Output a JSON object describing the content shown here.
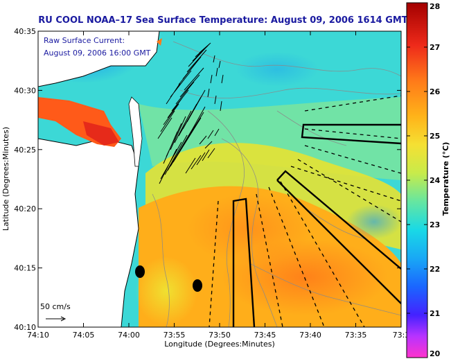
{
  "title": "RU COOL  NOAA–17  Sea Surface Temperature:  August 09, 2006 1614 GMT",
  "annotation": {
    "line1": "Raw Surface Current:",
    "line2": "August 09, 2006 16:00 GMT"
  },
  "scale_label": "50 cm/s",
  "x_axis": {
    "label": "Longitude (Degrees:Minutes)",
    "ticks": [
      "74:10",
      "74:05",
      "74:00",
      "73:55",
      "73:50",
      "73:45",
      "73:40",
      "73:35",
      "73:3"
    ]
  },
  "y_axis": {
    "label": "Latitude (Degrees:Minutes)",
    "ticks": [
      "40:35",
      "40:30",
      "40:25",
      "40:20",
      "40:15",
      "40:10"
    ]
  },
  "colorbar": {
    "label": "Temperature (°C)",
    "ticks": [
      "28",
      "27",
      "26",
      "25",
      "24",
      "23",
      "22",
      "21",
      "20"
    ],
    "range": [
      20,
      28
    ],
    "colors": [
      "#ff33cc",
      "#9933ff",
      "#1a1aff",
      "#1a8cff",
      "#19d9e6",
      "#66e6a0",
      "#e6e633",
      "#ffb319",
      "#ff6619",
      "#e61a1a",
      "#a30000"
    ]
  },
  "markers": {
    "count": 2,
    "color": "#000000"
  }
}
